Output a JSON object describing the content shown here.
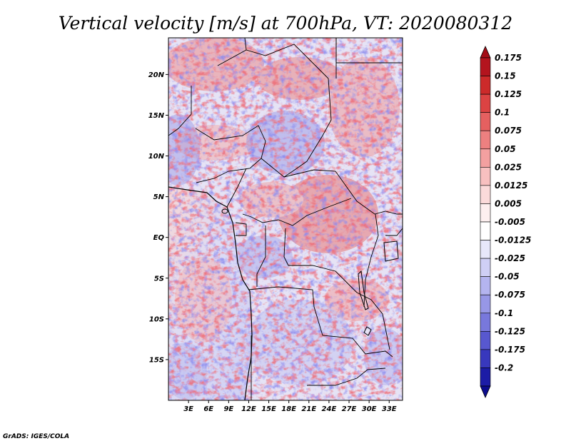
{
  "title": "Vertical velocity [m/s] at 700hPa, VT: 2020080312",
  "credit": "GrADS: IGES/COLA",
  "map": {
    "lon_range": [
      0,
      35
    ],
    "lat_range": [
      -20,
      24.5
    ],
    "lat_ticks": [
      {
        "value": 20,
        "label": "20N"
      },
      {
        "value": 15,
        "label": "15N"
      },
      {
        "value": 10,
        "label": "10N"
      },
      {
        "value": 5,
        "label": "5N"
      },
      {
        "value": 0,
        "label": "EQ"
      },
      {
        "value": -5,
        "label": "5S"
      },
      {
        "value": -10,
        "label": "10S"
      },
      {
        "value": -15,
        "label": "15S"
      }
    ],
    "lon_ticks": [
      {
        "value": 3,
        "label": "3E"
      },
      {
        "value": 6,
        "label": "6E"
      },
      {
        "value": 9,
        "label": "9E"
      },
      {
        "value": 12,
        "label": "12E"
      },
      {
        "value": 15,
        "label": "15E"
      },
      {
        "value": 18,
        "label": "18E"
      },
      {
        "value": 21,
        "label": "21E"
      },
      {
        "value": 24,
        "label": "24E"
      },
      {
        "value": 27,
        "label": "27E"
      },
      {
        "value": 30,
        "label": "30E"
      },
      {
        "value": 33,
        "label": "33E"
      }
    ],
    "ocean_color": "#f4f4fb",
    "border_color": "#000000"
  },
  "colorbar": {
    "levels": [
      {
        "label": "0.175",
        "color": "#b3141e"
      },
      {
        "label": "0.15",
        "color": "#cc2a2a"
      },
      {
        "label": "0.125",
        "color": "#dc4343"
      },
      {
        "label": "0.1",
        "color": "#e56060"
      },
      {
        "label": "0.075",
        "color": "#ed8080"
      },
      {
        "label": "0.05",
        "color": "#f3a0a0"
      },
      {
        "label": "0.025",
        "color": "#f8c0c0"
      },
      {
        "label": "0.0125",
        "color": "#fbdada"
      },
      {
        "label": "0.005",
        "color": "#fdefef"
      },
      {
        "label": "-0.005",
        "color": "#ffffff"
      },
      {
        "label": "-0.0125",
        "color": "#e7e7fa"
      },
      {
        "label": "-0.025",
        "color": "#cfcff5"
      },
      {
        "label": "-0.05",
        "color": "#b4b4ef"
      },
      {
        "label": "-0.075",
        "color": "#9797e6"
      },
      {
        "label": "-0.1",
        "color": "#7878dc"
      },
      {
        "label": "-0.125",
        "color": "#5858cf"
      },
      {
        "label": "-0.175",
        "color": "#3838bd"
      },
      {
        "label": "-0.2",
        "color": "#1c1ca6"
      }
    ],
    "top_arrow_color": "#a30d17",
    "bottom_arrow_color": "#0c0c8e"
  }
}
